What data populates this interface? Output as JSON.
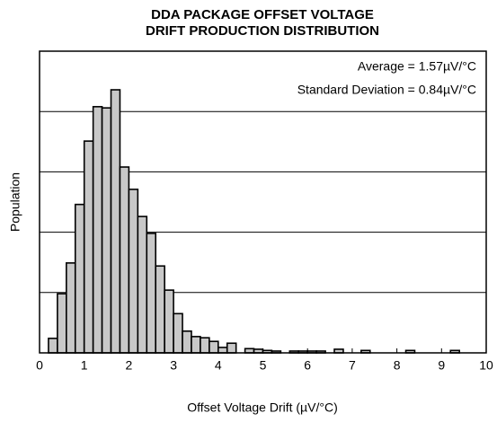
{
  "chart_data": {
    "type": "histogram",
    "title": [
      "DDA PACKAGE OFFSET VOLTAGE",
      "DRIFT PRODUCTION DISTRIBUTION"
    ],
    "annotations": [
      "Average = 1.57µV/°C",
      "Standard Deviation = 0.84µV/°C"
    ],
    "xlabel": "Offset Voltage Drift (µV/°C)",
    "ylabel": "Population",
    "bins": [
      0.2,
      0.4,
      0.6,
      0.8,
      1.0,
      1.2,
      1.4,
      1.6,
      1.8,
      2.0,
      2.2,
      2.4,
      2.6,
      2.8,
      3.0,
      3.2,
      3.4,
      3.6,
      3.8,
      4.0,
      4.2,
      4.4,
      4.6,
      4.8,
      5.0,
      5.2,
      5.4,
      5.6,
      5.8,
      6.0,
      6.2,
      6.4,
      6.6,
      6.8,
      7.0,
      7.2,
      7.4,
      7.6,
      7.8,
      8.0,
      8.2,
      8.4,
      8.6,
      8.8,
      9.0,
      9.2,
      9.4
    ],
    "values": [
      0.24,
      0.98,
      1.49,
      2.46,
      3.51,
      4.08,
      4.06,
      4.36,
      3.08,
      2.71,
      2.26,
      1.98,
      1.44,
      1.04,
      0.65,
      0.36,
      0.27,
      0.25,
      0.19,
      0.09,
      0.16,
      0,
      0.07,
      0.06,
      0.04,
      0.03,
      0,
      0.03,
      0.03,
      0.03,
      0.03,
      0,
      0.06,
      0,
      0,
      0.04,
      0,
      0,
      0,
      0,
      0.04,
      0,
      0,
      0,
      0,
      0.04
    ],
    "color": "#c8c8c8",
    "xlim": [
      0,
      10
    ],
    "xticks": [
      0,
      1,
      2,
      3,
      4,
      5,
      6,
      7,
      8,
      9,
      10
    ],
    "ylim": [
      0,
      5
    ],
    "yticks": [
      1,
      2,
      3,
      4
    ],
    "ytick_labels_shown": false,
    "grid": true
  }
}
